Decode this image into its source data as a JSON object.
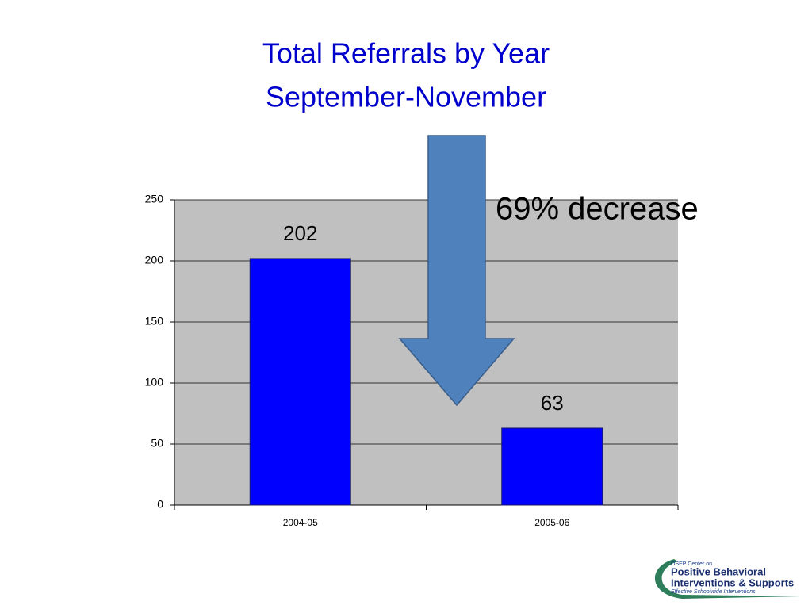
{
  "chart_data": {
    "type": "bar",
    "title": "Total Referrals by Year",
    "subtitle": "September-November",
    "categories": [
      "2004-05",
      "2005-06"
    ],
    "values": [
      202,
      63
    ],
    "color": "#0000ff",
    "ylim": [
      0,
      250
    ],
    "yticks": [
      0,
      50,
      100,
      150,
      200,
      250
    ],
    "grid": true,
    "annotation": "69% decrease"
  },
  "logo": {
    "line1": "OSEP Center on",
    "line2": "Positive Behavioral",
    "line3": "Interventions & Supports",
    "line4": "Effective Schoolwide Interventions"
  }
}
